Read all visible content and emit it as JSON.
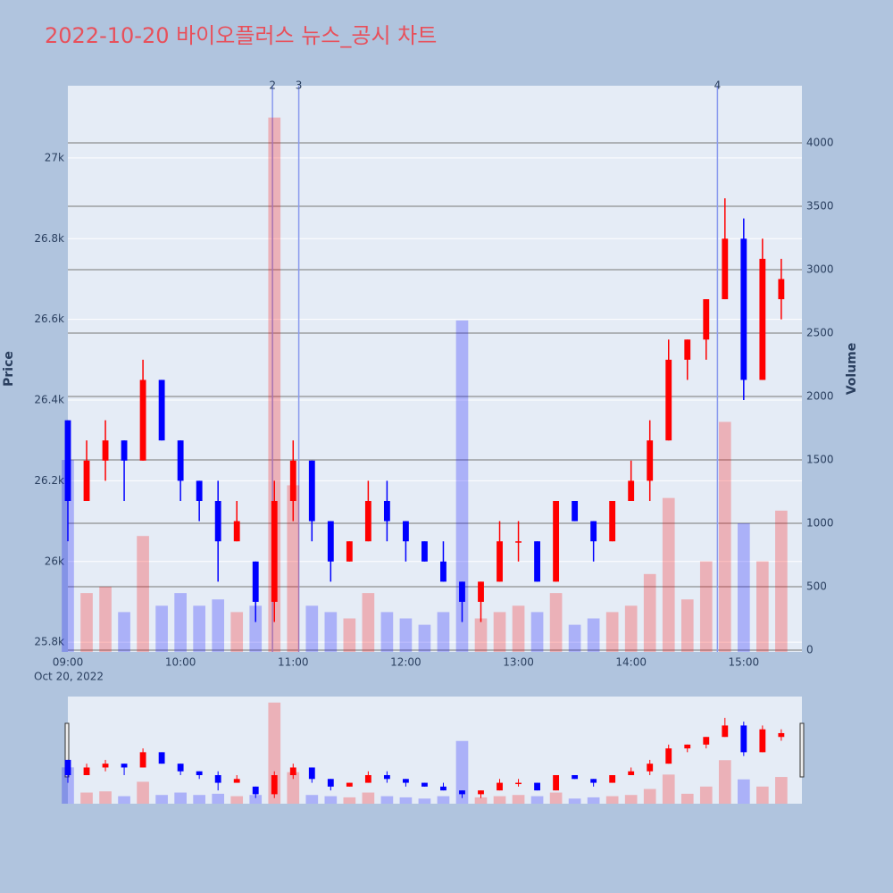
{
  "chart_data": {
    "type": "candlestick",
    "title": "2022-10-20 바이오플러스 뉴스_공시 차트",
    "date_label": "Oct 20, 2022",
    "y_label": "Price",
    "y2_label": "Volume",
    "increasing_color": "#ff0000",
    "decreasing_color": "#0000ff",
    "x": [
      "09:00",
      "09:10",
      "09:20",
      "09:30",
      "09:40",
      "09:50",
      "10:00",
      "10:10",
      "10:20",
      "10:30",
      "10:40",
      "10:50",
      "11:00",
      "11:10",
      "11:20",
      "11:30",
      "11:40",
      "11:50",
      "12:00",
      "12:10",
      "12:20",
      "12:30",
      "12:40",
      "12:50",
      "13:00",
      "13:10",
      "13:20",
      "13:30",
      "13:40",
      "13:50",
      "14:00",
      "14:10",
      "14:20",
      "14:30",
      "14:40",
      "14:50",
      "15:00",
      "15:10",
      "15:20"
    ],
    "open": [
      26350,
      26150,
      26250,
      26300,
      26250,
      26450,
      26300,
      26200,
      26150,
      26050,
      26000,
      25900,
      26150,
      26250,
      26100,
      26000,
      26050,
      26150,
      26100,
      26050,
      26000,
      25950,
      25900,
      25950,
      26050,
      26050,
      25950,
      26150,
      26100,
      26050,
      26150,
      26200,
      26300,
      26500,
      26550,
      26650,
      26800,
      26450,
      26650
    ],
    "high": [
      26350,
      26300,
      26350,
      26300,
      26500,
      26450,
      26300,
      26200,
      26200,
      26150,
      26000,
      26200,
      26300,
      26250,
      26100,
      26050,
      26200,
      26200,
      26100,
      26050,
      26050,
      25950,
      25950,
      26100,
      26100,
      26050,
      26150,
      26150,
      26100,
      26150,
      26250,
      26350,
      26550,
      26550,
      26650,
      26900,
      26850,
      26800,
      26750
    ],
    "low": [
      26050,
      26150,
      26200,
      26150,
      26250,
      26300,
      26150,
      26100,
      25950,
      26050,
      25850,
      25850,
      26100,
      26050,
      25950,
      26000,
      26050,
      26050,
      26000,
      26000,
      25950,
      25850,
      25850,
      25950,
      26000,
      25950,
      25950,
      26100,
      26000,
      26050,
      26150,
      26150,
      26300,
      26450,
      26500,
      26650,
      26400,
      26450,
      26600
    ],
    "close": [
      26150,
      26250,
      26300,
      26250,
      26450,
      26300,
      26200,
      26150,
      26050,
      26100,
      25900,
      26150,
      26250,
      26100,
      26000,
      26050,
      26150,
      26100,
      26050,
      26000,
      25950,
      25900,
      25950,
      26050,
      26050,
      25950,
      26150,
      26100,
      26050,
      26150,
      26200,
      26300,
      26500,
      26550,
      26650,
      26800,
      26450,
      26750,
      26700
    ],
    "volume": [
      1500,
      450,
      500,
      300,
      900,
      350,
      450,
      350,
      400,
      300,
      350,
      4200,
      1300,
      350,
      300,
      250,
      450,
      300,
      250,
      200,
      300,
      2600,
      250,
      300,
      350,
      300,
      450,
      200,
      250,
      300,
      350,
      600,
      1200,
      400,
      700,
      1800,
      1000,
      700,
      1100
    ],
    "annotations": [
      {
        "x": "10:49",
        "label": "2"
      },
      {
        "x": "11:03",
        "label": "3"
      },
      {
        "x": "14:46",
        "label": "4"
      }
    ],
    "xlim": [
      "09:00",
      "15:31"
    ],
    "xticks": [
      "09:00",
      "10:00",
      "11:00",
      "12:00",
      "13:00",
      "14:00",
      "15:00"
    ],
    "ylim": [
      25776,
      27179
    ],
    "yticks": [
      {
        "value": 25800,
        "label": "25.8k"
      },
      {
        "value": 26000,
        "label": "26k"
      },
      {
        "value": 26200,
        "label": "26.2k"
      },
      {
        "value": 26400,
        "label": "26.4k"
      },
      {
        "value": 26600,
        "label": "26.6k"
      },
      {
        "value": 26800,
        "label": "26.8k"
      },
      {
        "value": 27000,
        "label": "27k"
      }
    ],
    "y2lim": [
      -14,
      4451
    ],
    "y2ticks": [
      0,
      500,
      1000,
      1500,
      2000,
      2500,
      3000,
      3500,
      4000
    ]
  }
}
